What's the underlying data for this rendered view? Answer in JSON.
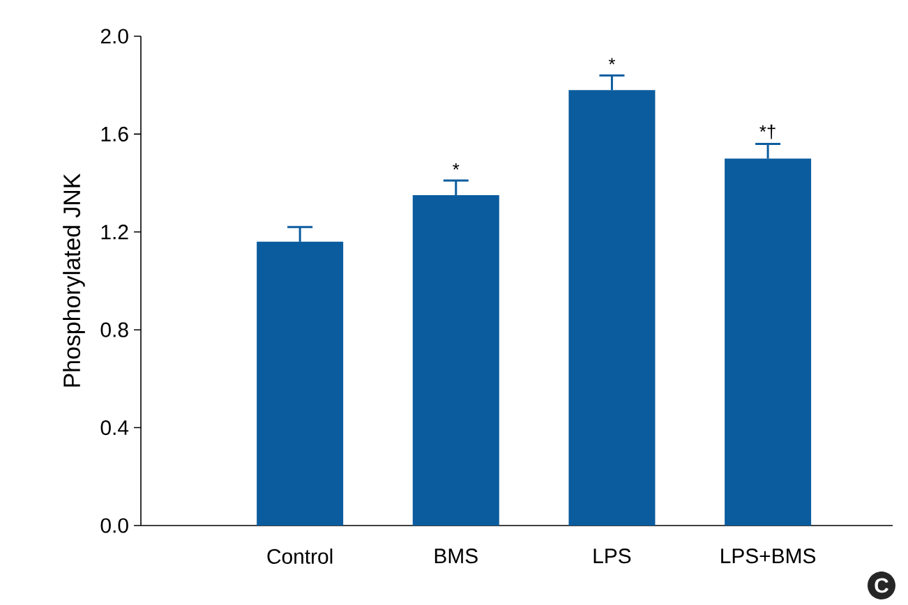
{
  "chart_data": {
    "type": "bar",
    "ylabel": "Phosphorylated JNK",
    "categories": [
      "Control",
      "BMS",
      "LPS",
      "LPS+BMS"
    ],
    "values": [
      1.16,
      1.35,
      1.78,
      1.5
    ],
    "errors": [
      0.06,
      0.06,
      0.06,
      0.06
    ],
    "color": "#0b5c9e",
    "ylim": [
      0,
      2.0
    ],
    "yticks": [
      {
        "value": 0,
        "label": "0.0"
      },
      0.4,
      0.8,
      1.2,
      1.6,
      {
        "value": 2.0,
        "label": "2.0"
      }
    ],
    "annotations": [
      {
        "text": "*",
        "x": "BMS",
        "y": 1.41
      },
      {
        "text": "*",
        "x": "LPS",
        "y": 1.84
      },
      {
        "text": "*†",
        "x": "LPS+BMS",
        "y": 1.56
      },
      "C"
    ],
    "grid": false
  }
}
